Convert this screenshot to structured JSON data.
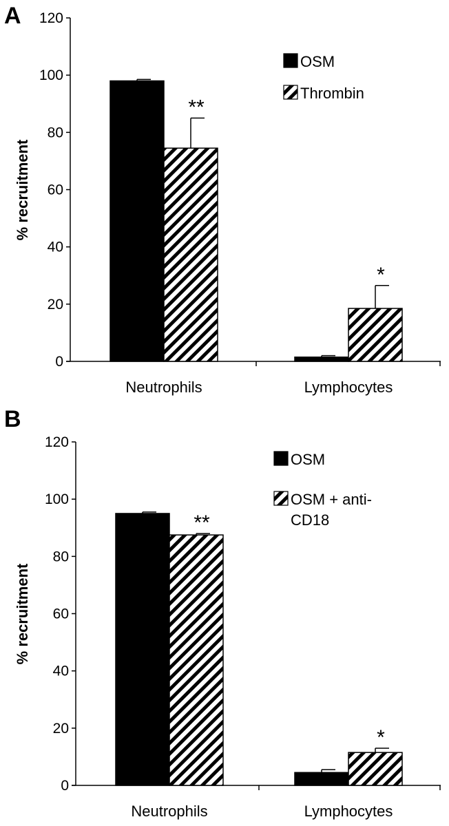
{
  "chart_data": [
    {
      "panel": "A",
      "type": "bar",
      "categories": [
        "Neutrophils",
        "Lymphocytes"
      ],
      "ylabel": "% recruitment",
      "xlabel": "",
      "ylim": [
        0,
        120
      ],
      "yticks": [
        0,
        20,
        40,
        60,
        80,
        100,
        120
      ],
      "legend_position": "top-right",
      "series": [
        {
          "name": "OSM",
          "values": [
            98,
            1.5
          ],
          "errors": [
            0.5,
            0.5
          ],
          "fill": "#000000",
          "pattern": "solid"
        },
        {
          "name": "Thrombin",
          "values": [
            74.5,
            18.5
          ],
          "errors": [
            10.5,
            8
          ],
          "fill": "#000000",
          "pattern": "hatch"
        }
      ],
      "annotations": [
        {
          "text": "**",
          "category": 0,
          "series": 1
        },
        {
          "text": "*",
          "category": 1,
          "series": 1
        }
      ]
    },
    {
      "panel": "B",
      "type": "bar",
      "categories": [
        "Neutrophils",
        "Lymphocytes"
      ],
      "ylabel": "% recruitment",
      "xlabel": "",
      "ylim": [
        0,
        120
      ],
      "yticks": [
        0,
        20,
        40,
        60,
        80,
        100,
        120
      ],
      "legend_position": "top-right",
      "series": [
        {
          "name": "OSM",
          "values": [
            95,
            4.5
          ],
          "errors": [
            0.5,
            1
          ],
          "fill": "#000000",
          "pattern": "solid"
        },
        {
          "name": "OSM + anti-CD18",
          "name_lines": [
            "OSM + anti-",
            "CD18"
          ],
          "values": [
            87.5,
            11.5
          ],
          "errors": [
            0.5,
            1.5
          ],
          "fill": "#000000",
          "pattern": "hatch"
        }
      ],
      "annotations": [
        {
          "text": "**",
          "category": 0,
          "series": 1
        },
        {
          "text": "*",
          "category": 1,
          "series": 1
        }
      ]
    }
  ]
}
